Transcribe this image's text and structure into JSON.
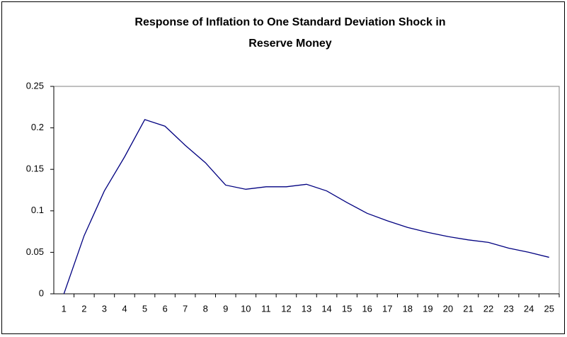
{
  "chart_data": {
    "type": "line",
    "title": [
      "Response of Inflation to One Standard Deviation Shock in",
      "Reserve Money"
    ],
    "categories": [
      "1",
      "2",
      "3",
      "4",
      "5",
      "6",
      "7",
      "8",
      "9",
      "10",
      "11",
      "12",
      "13",
      "14",
      "15",
      "16",
      "17",
      "18",
      "19",
      "20",
      "21",
      "22",
      "23",
      "24",
      "25"
    ],
    "values": [
      0,
      0.07,
      0.124,
      0.165,
      0.21,
      0.202,
      0.179,
      0.158,
      0.131,
      0.126,
      0.129,
      0.129,
      0.132,
      0.124,
      0.11,
      0.097,
      0.088,
      0.08,
      0.074,
      0.069,
      0.065,
      0.062,
      0.055,
      0.05,
      0.044
    ],
    "color": "#000080",
    "ylim": [
      0,
      0.25
    ],
    "yticks": [
      0,
      0.05,
      0.1,
      0.15,
      0.2,
      0.25
    ],
    "grid": false
  }
}
